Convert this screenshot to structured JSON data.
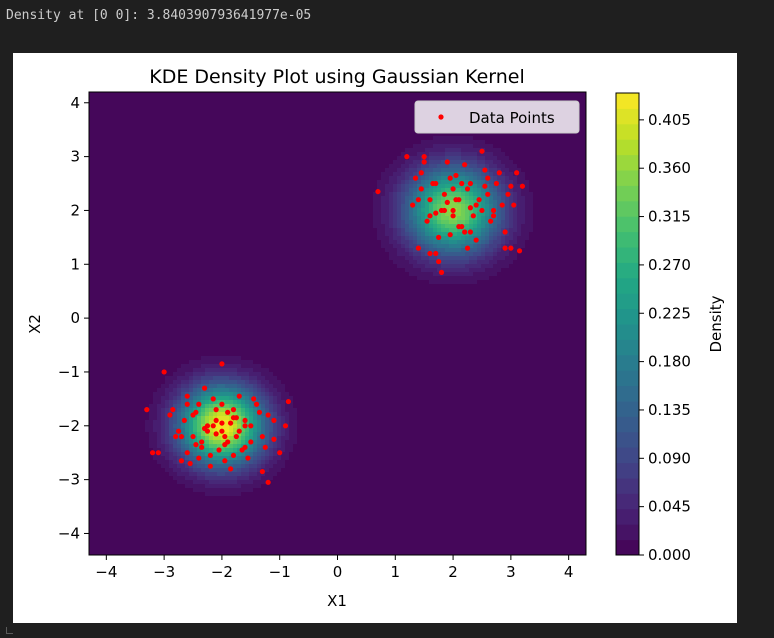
{
  "output_text": "Density at [0 0]: 3.840390793641977e-05",
  "chart_data": {
    "type": "heatmap",
    "title": "KDE Density Plot using Gaussian Kernel",
    "xlabel": "X1",
    "ylabel": "X2",
    "xlim": [
      -4.3,
      4.3
    ],
    "ylim": [
      -4.4,
      4.2
    ],
    "x_ticks": [
      -4,
      -3,
      -2,
      -1,
      0,
      1,
      2,
      3,
      4
    ],
    "x_tick_labels": [
      "−4",
      "−3",
      "−2",
      "−1",
      "0",
      "1",
      "2",
      "3",
      "4"
    ],
    "y_ticks": [
      -4,
      -3,
      -2,
      -1,
      0,
      1,
      2,
      3,
      4
    ],
    "y_tick_labels": [
      "−4",
      "−3",
      "−2",
      "−1",
      "0",
      "1",
      "2",
      "3",
      "4"
    ],
    "colormap": "viridis",
    "grid": false,
    "legend": {
      "placement": "top-right",
      "entries": [
        "Data Points"
      ]
    },
    "colorbar": {
      "label": "Density",
      "range": [
        0.0,
        0.43
      ],
      "ticks": [
        0.0,
        0.045,
        0.09,
        0.135,
        0.18,
        0.225,
        0.27,
        0.315,
        0.36,
        0.405
      ],
      "tick_labels": [
        "0.000",
        "0.045",
        "0.090",
        "0.135",
        "0.180",
        "0.225",
        "0.270",
        "0.315",
        "0.360",
        "0.405"
      ]
    },
    "density_clusters": [
      {
        "center": [
          -2.0,
          -2.0
        ],
        "std": 0.5,
        "peak": 0.43
      },
      {
        "center": [
          2.0,
          2.0
        ],
        "std": 0.55,
        "peak": 0.36
      }
    ],
    "series": [
      {
        "name": "Data Points",
        "type": "scatter",
        "color": "#ff0000",
        "x": [
          -3.0,
          -2.9,
          -2.7,
          -2.6,
          -2.4,
          -2.3,
          -2.25,
          -2.1,
          -2.0,
          -1.9,
          -1.8,
          -1.7,
          -1.6,
          -1.5,
          -1.45,
          -1.3,
          -1.2,
          -1.1,
          -1.0,
          -0.9,
          -0.85,
          -3.3,
          -3.1,
          -2.85,
          -2.75,
          -2.6,
          -2.5,
          -2.35,
          -2.2,
          -2.15,
          -2.0,
          -1.95,
          -1.85,
          -1.75,
          -1.6,
          -1.55,
          -1.4,
          -1.25,
          -1.1,
          -2.8,
          -2.65,
          -2.45,
          -2.3,
          -2.1,
          -2.05,
          -1.95,
          -1.8,
          -1.7,
          -1.5,
          -1.35,
          -2.2,
          -2.0,
          -1.65,
          -1.85,
          -2.4,
          -2.55,
          -1.75,
          -2.25,
          -1.95,
          -2.7,
          -2.5,
          -2.1,
          -1.9,
          -1.6,
          -1.3,
          -3.2,
          -2.35,
          -1.2,
          -2.0,
          -1.8,
          -2.15,
          -2.6,
          -2.45,
          1.2,
          1.4,
          1.5,
          1.6,
          1.7,
          1.75,
          1.85,
          1.9,
          2.0,
          2.1,
          2.2,
          2.3,
          2.4,
          2.5,
          2.6,
          2.7,
          2.8,
          2.9,
          3.0,
          3.1,
          3.2,
          0.7,
          1.3,
          1.45,
          1.55,
          1.65,
          1.8,
          1.95,
          2.05,
          2.15,
          2.25,
          2.35,
          2.45,
          2.55,
          2.65,
          2.75,
          2.85,
          2.95,
          3.05,
          1.4,
          1.5,
          1.6,
          1.7,
          1.85,
          2.0,
          2.1,
          2.2,
          2.3,
          2.5,
          2.6,
          2.7,
          1.9,
          2.0,
          2.4,
          1.75,
          1.6,
          2.15,
          2.3,
          2.05,
          1.95,
          2.25,
          1.45,
          1.8,
          2.9,
          3.0,
          3.15,
          2.55,
          1.7,
          1.35
        ],
        "y": [
          -1.0,
          -1.8,
          -2.2,
          -1.6,
          -2.6,
          -1.3,
          -2.0,
          -1.9,
          -0.85,
          -2.3,
          -1.7,
          -1.45,
          -2.4,
          -2.0,
          -1.5,
          -2.2,
          -3.05,
          -1.9,
          -2.5,
          -2.0,
          -1.55,
          -1.7,
          -2.5,
          -1.7,
          -2.1,
          -2.5,
          -1.8,
          -2.3,
          -2.75,
          -1.5,
          -2.1,
          -2.65,
          -1.95,
          -2.2,
          -2.0,
          -2.6,
          -1.6,
          -2.4,
          -2.25,
          -2.2,
          -1.9,
          -2.35,
          -2.05,
          -1.7,
          -2.45,
          -2.2,
          -1.85,
          -2.1,
          -2.3,
          -1.75,
          -2.55,
          -1.6,
          -2.45,
          -2.8,
          -1.6,
          -2.7,
          -1.85,
          -2.1,
          -2.35,
          -2.65,
          -2.2,
          -2.15,
          -1.75,
          -1.9,
          -2.85,
          -2.5,
          -2.4,
          -1.8,
          -1.95,
          -2.55,
          -2.0,
          -1.45,
          -1.75,
          3.0,
          2.2,
          3.0,
          1.9,
          2.5,
          1.5,
          2.3,
          2.9,
          2.0,
          2.2,
          1.6,
          2.5,
          2.1,
          3.1,
          2.6,
          2.0,
          2.7,
          1.3,
          2.45,
          2.7,
          2.45,
          2.35,
          2.1,
          2.4,
          1.8,
          2.5,
          2.0,
          2.6,
          2.2,
          1.7,
          2.4,
          1.9,
          2.2,
          2.75,
          1.8,
          2.5,
          2.1,
          2.3,
          2.1,
          1.3,
          2.9,
          2.2,
          1.2,
          2.0,
          2.4,
          1.7,
          2.85,
          1.6,
          2.0,
          2.3,
          1.9,
          2.15,
          1.9,
          1.45,
          1.05,
          1.2,
          2.5,
          2.05,
          2.65,
          1.55,
          1.3,
          2.7,
          0.85,
          1.6,
          1.3,
          1.25,
          2.45,
          1.95,
          2.6
        ]
      }
    ]
  }
}
